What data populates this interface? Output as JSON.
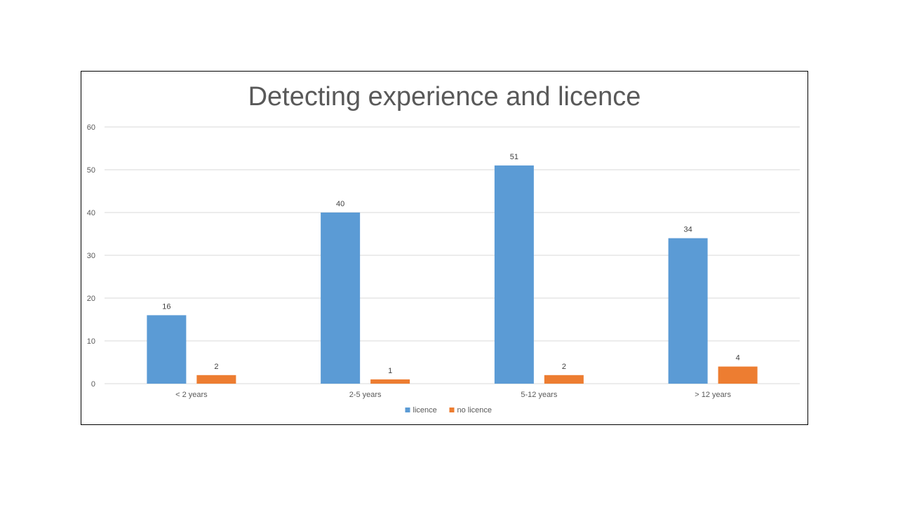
{
  "chart_data": {
    "type": "bar",
    "title": "Detecting experience and licence",
    "categories": [
      "< 2 years",
      "2-5 years",
      "5-12 years",
      "> 12 years"
    ],
    "series": [
      {
        "name": "licence",
        "values": [
          16,
          40,
          51,
          34
        ],
        "color": "#5B9BD5"
      },
      {
        "name": "no licence",
        "values": [
          2,
          1,
          2,
          4
        ],
        "color": "#ED7D31"
      }
    ],
    "ylim": [
      0,
      60
    ],
    "yticks": [
      0,
      10,
      20,
      30,
      40,
      50,
      60
    ],
    "grid": true,
    "legend_position": "bottom",
    "data_labels": true
  }
}
